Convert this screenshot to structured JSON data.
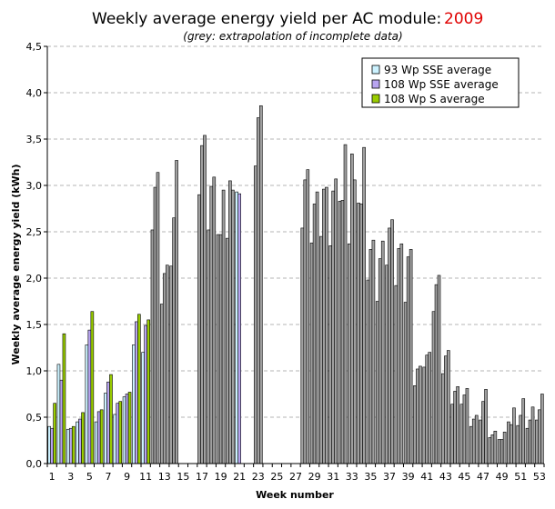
{
  "chart_data": {
    "type": "bar",
    "title": "Weekly average energy yield per AC module:",
    "title_year": "2009",
    "subtitle": "(grey: extrapolation of incomplete data)",
    "xlabel": "Week number",
    "ylabel": "Weekly average energy yield (kWh)",
    "ylim": [
      0,
      4.5
    ],
    "y_ticks": [
      "0,0",
      "0,5",
      "1,0",
      "1,5",
      "2,0",
      "2,5",
      "3,0",
      "3,5",
      "4,0",
      "4,5"
    ],
    "x_ticks": [
      "1",
      "3",
      "5",
      "7",
      "9",
      "11",
      "13",
      "15",
      "17",
      "19",
      "21",
      "23",
      "25",
      "27",
      "29",
      "31",
      "33",
      "35",
      "37",
      "39",
      "41",
      "43",
      "45",
      "47",
      "49",
      "51",
      "53"
    ],
    "grid": true,
    "legend_position": "top-right",
    "categories": [
      1,
      2,
      3,
      4,
      5,
      6,
      7,
      8,
      9,
      10,
      11,
      12,
      13,
      14,
      15,
      16,
      17,
      18,
      19,
      20,
      21,
      22,
      23,
      24,
      25,
      26,
      27,
      28,
      29,
      30,
      31,
      32,
      33,
      34,
      35,
      36,
      37,
      38,
      39,
      40,
      41,
      42,
      43,
      44,
      45,
      46,
      47,
      48,
      49,
      50,
      51,
      52,
      53
    ],
    "series": [
      {
        "name": "93 Wp SSE average",
        "color": "#ccf2ff",
        "values": [
          0.4,
          1.07,
          0.37,
          0.45,
          1.28,
          0.45,
          0.76,
          0.53,
          0.72,
          1.28,
          1.2,
          2.52,
          1.72,
          2.13,
          null,
          null,
          2.9,
          2.52,
          2.47,
          2.43,
          2.93,
          null,
          3.21,
          null,
          null,
          null,
          null,
          2.54,
          2.38,
          2.45,
          2.35,
          2.83,
          2.37,
          2.81,
          1.98,
          1.75,
          2.14,
          1.92,
          1.74,
          0.84,
          1.04,
          1.64,
          0.97,
          0.64,
          0.64,
          0.4,
          0.47,
          0.28,
          0.26,
          0.45,
          0.41,
          0.38,
          0.47
        ]
      },
      {
        "name": "108 Wp SSE average",
        "color": "#b8a4f0",
        "values": [
          0.38,
          0.9,
          0.38,
          0.48,
          1.44,
          0.56,
          0.88,
          0.65,
          0.75,
          1.53,
          1.49,
          2.98,
          2.05,
          2.65,
          null,
          null,
          3.43,
          2.99,
          2.47,
          3.05,
          2.91,
          null,
          3.73,
          null,
          null,
          null,
          null,
          3.06,
          2.8,
          2.96,
          2.94,
          2.84,
          3.34,
          2.8,
          2.31,
          2.21,
          2.54,
          2.32,
          2.23,
          1.02,
          1.17,
          1.93,
          1.16,
          0.78,
          0.74,
          0.48,
          0.67,
          0.31,
          0.26,
          0.42,
          0.52,
          0.47,
          0.58
        ]
      },
      {
        "name": "108 Wp S average",
        "color": "#99cc00",
        "values": [
          0.65,
          1.4,
          0.4,
          0.55,
          1.64,
          0.58,
          0.96,
          0.67,
          0.77,
          1.61,
          1.55,
          3.14,
          2.14,
          3.27,
          null,
          null,
          3.54,
          3.09,
          2.95,
          2.95,
          null,
          null,
          3.86,
          null,
          null,
          null,
          null,
          3.17,
          2.93,
          2.98,
          3.07,
          3.44,
          3.06,
          3.41,
          2.41,
          2.4,
          2.63,
          2.37,
          2.31,
          1.05,
          1.2,
          2.03,
          1.22,
          0.83,
          0.81,
          0.52,
          0.8,
          0.35,
          0.34,
          0.6,
          0.7,
          0.61,
          0.75
        ]
      }
    ],
    "extrapolated_color": "#a0a0a0",
    "extrapolated_weeks": [
      12,
      13,
      14,
      17,
      18,
      19,
      20,
      23,
      28,
      29,
      30,
      31,
      32,
      33,
      34,
      35,
      36,
      37,
      38,
      39,
      40,
      41,
      42,
      43,
      44,
      45,
      46,
      47,
      48,
      49,
      50,
      51,
      52,
      53
    ]
  }
}
